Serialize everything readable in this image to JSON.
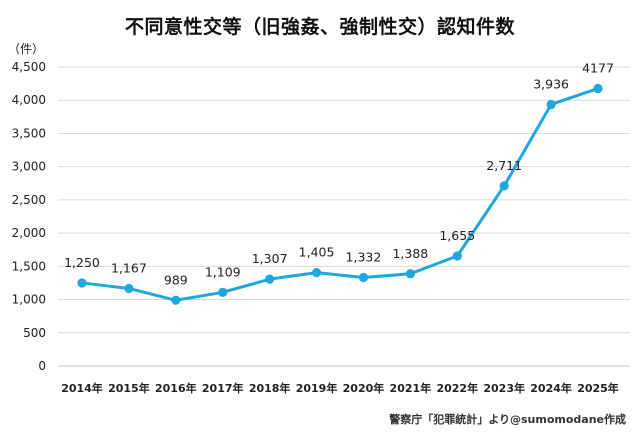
{
  "chart": {
    "title": "不同意性交等（旧強姦、強制性交）認知件数",
    "y_unit": "（件）",
    "source": "警察庁「犯罪統計」より@sumomodane作成"
  },
  "chart_data": {
    "type": "line",
    "title": "不同意性交等（旧強姦、強制性交）認知件数",
    "xlabel": "",
    "ylabel": "（件）",
    "categories": [
      "2014年",
      "2015年",
      "2016年",
      "2017年",
      "2018年",
      "2019年",
      "2020年",
      "2021年",
      "2022年",
      "2023年",
      "2024年",
      "2025年"
    ],
    "series": [
      {
        "values": [
          1250,
          1167,
          989,
          1109,
          1307,
          1405,
          1332,
          1388,
          1655,
          2711,
          3936,
          4177
        ]
      }
    ],
    "data_labels": [
      "1,250",
      "1,167",
      "989",
      "1,109",
      "1,307",
      "1,405",
      "1,332",
      "1,388",
      "1,655",
      "2,711",
      "3,936",
      "4177"
    ],
    "y_ticks": [
      0,
      500,
      1000,
      1500,
      2000,
      2500,
      3000,
      3500,
      4000,
      4500
    ],
    "y_tick_labels": [
      "0",
      "500",
      "1,000",
      "1,500",
      "2,000",
      "2,500",
      "3,000",
      "3,500",
      "4,000",
      "4,500"
    ],
    "ylim": [
      0,
      4500
    ],
    "grid": true,
    "legend": "none",
    "colors": {
      "line": "#1ea7e1",
      "grid": "#d9d9d9",
      "axis": "#bfbfbf"
    }
  }
}
